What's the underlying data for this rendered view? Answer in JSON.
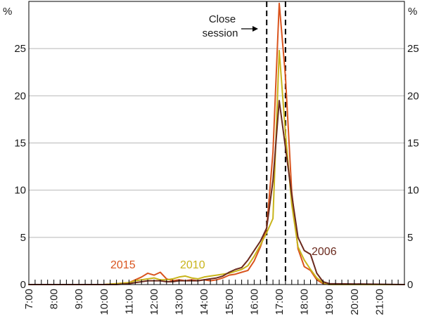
{
  "chart_data": {
    "type": "line",
    "title": "",
    "xlabel": "",
    "ylabel": "",
    "y_unit_left": "%",
    "y_unit_right": "%",
    "ylim": [
      0,
      30
    ],
    "yticks": [
      0,
      5,
      10,
      15,
      20,
      25
    ],
    "y_tick_labels": [
      "0",
      "5",
      "10",
      "15",
      "20",
      "25"
    ],
    "xlim": [
      "7:00",
      "22:00"
    ],
    "x_tick_labels": [
      "7:00",
      "8:00",
      "9:00",
      "10:00",
      "11:00",
      "12:00",
      "13:00",
      "14:00",
      "15:00",
      "16:00",
      "17:00",
      "18:00",
      "19:00",
      "20:00",
      "21:00"
    ],
    "x_interval_minutes": 15,
    "grid": true,
    "close_session": {
      "label_line1": "Close",
      "label_line2": "session",
      "start": "16:30",
      "end": "17:15"
    },
    "series": [
      {
        "name": "2015",
        "color": "#d9541e",
        "x": [
          "7:00",
          "10:00",
          "10:30",
          "11:00",
          "11:15",
          "11:30",
          "11:45",
          "12:00",
          "12:15",
          "12:30",
          "12:45",
          "13:00",
          "13:15",
          "13:30",
          "13:45",
          "14:00",
          "14:15",
          "14:30",
          "14:45",
          "15:00",
          "15:15",
          "15:30",
          "15:45",
          "16:00",
          "16:15",
          "16:30",
          "16:45",
          "17:00",
          "17:15",
          "17:30",
          "17:45",
          "18:00",
          "18:15",
          "18:30",
          "18:45",
          "19:00",
          "22:00"
        ],
        "y": [
          0,
          0,
          0.1,
          0.2,
          0.5,
          0.8,
          1.2,
          1.0,
          1.3,
          0.6,
          0.4,
          0.5,
          0.4,
          0.5,
          0.4,
          0.5,
          0.4,
          0.5,
          0.7,
          1.0,
          1.1,
          1.3,
          1.5,
          2.5,
          4.0,
          6.0,
          14.0,
          29.8,
          22.0,
          9.8,
          3.8,
          1.9,
          1.5,
          0.5,
          0.1,
          0,
          0
        ]
      },
      {
        "name": "2010",
        "color": "#c8b41a",
        "x": [
          "7:00",
          "10:00",
          "10:30",
          "11:00",
          "11:15",
          "11:30",
          "11:45",
          "12:00",
          "12:15",
          "12:30",
          "12:45",
          "13:00",
          "13:15",
          "13:30",
          "13:45",
          "14:00",
          "14:15",
          "14:30",
          "14:45",
          "15:00",
          "15:15",
          "15:30",
          "15:45",
          "16:00",
          "16:15",
          "16:30",
          "16:45",
          "17:00",
          "17:15",
          "17:30",
          "17:45",
          "18:00",
          "18:15",
          "18:30",
          "18:45",
          "19:00",
          "22:00"
        ],
        "y": [
          0,
          0,
          0.1,
          0.2,
          0.4,
          0.5,
          0.6,
          0.7,
          0.5,
          0.5,
          0.6,
          0.8,
          0.9,
          0.7,
          0.6,
          0.8,
          0.9,
          1.0,
          1.1,
          1.2,
          1.4,
          1.6,
          2.0,
          3.0,
          4.2,
          5.5,
          7.0,
          24.8,
          16.0,
          8.5,
          4.0,
          2.6,
          1.6,
          0.7,
          0.2,
          0,
          0
        ]
      },
      {
        "name": "2006",
        "color": "#6b2a1e",
        "x": [
          "7:00",
          "10:00",
          "10:30",
          "11:00",
          "11:15",
          "11:30",
          "11:45",
          "12:00",
          "12:15",
          "12:30",
          "12:45",
          "13:00",
          "13:15",
          "13:30",
          "13:45",
          "14:00",
          "14:15",
          "14:30",
          "14:45",
          "15:00",
          "15:15",
          "15:30",
          "15:45",
          "16:00",
          "16:15",
          "16:30",
          "16:45",
          "17:00",
          "17:15",
          "17:30",
          "17:45",
          "18:00",
          "18:15",
          "18:30",
          "18:45",
          "19:00",
          "22:00"
        ],
        "y": [
          0,
          0,
          0,
          0.1,
          0.2,
          0.3,
          0.4,
          0.4,
          0.4,
          0.3,
          0.3,
          0.4,
          0.4,
          0.4,
          0.4,
          0.5,
          0.6,
          0.7,
          0.9,
          1.3,
          1.6,
          1.8,
          2.6,
          3.6,
          4.6,
          6.0,
          11.0,
          19.5,
          14.5,
          9.5,
          5.0,
          3.6,
          3.2,
          1.2,
          0.3,
          0.1,
          0
        ]
      }
    ]
  }
}
